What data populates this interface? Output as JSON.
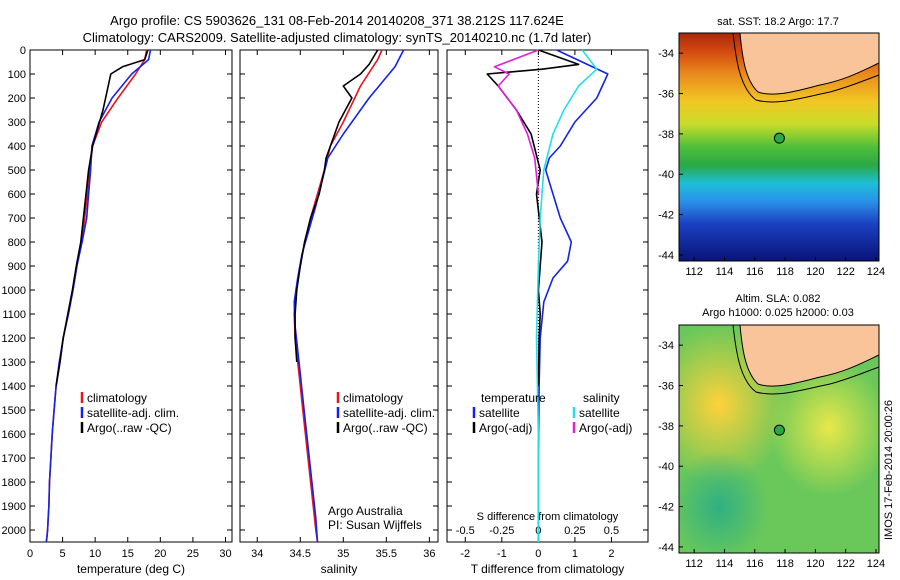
{
  "title_line1": "Argo profile: CS 5903626_131 08-Feb-2014 20140208_371 38.212S 117.624E",
  "title_line2": "Climatology: CARS2009. Satellite-adjusted climatology: synTS_20140210.nc (1.7d later)",
  "side_text": "IMOS 17-Feb-2014 20:00:26",
  "colors": {
    "climatology": "#e8141e",
    "satellite": "#1423e6",
    "argo": "#000000",
    "salinity_satellite": "#22e0e8",
    "salinity_argo": "#e020d8"
  },
  "chart_data": [
    {
      "type": "line",
      "xlabel": "temperature (deg C)",
      "ylabel": "",
      "xlim": [
        0,
        31
      ],
      "ylim": [
        2050,
        0
      ],
      "xticks": [
        0,
        5,
        10,
        15,
        20,
        25,
        30
      ],
      "yticks": [
        0,
        100,
        200,
        300,
        400,
        500,
        600,
        700,
        800,
        900,
        1000,
        1100,
        1200,
        1300,
        1400,
        1500,
        1600,
        1700,
        1800,
        1900,
        2000
      ],
      "legend": {
        "location": "center-right",
        "entries": [
          "climatology",
          "satellite-adj. clim.",
          "Argo(..raw -QC)"
        ]
      },
      "series": [
        {
          "name": "climatology",
          "color_key": "climatology",
          "x": [
            17.9,
            17.6,
            16.2,
            13.5,
            11.0,
            9.6,
            9.2,
            8.8,
            8.4,
            7.9,
            7.2,
            6.6,
            5.9,
            5.1,
            4.6,
            4.0,
            3.7,
            3.4,
            3.2,
            3.0,
            2.9,
            2.8,
            2.7,
            2.6,
            2.5
          ],
          "y": [
            0,
            40,
            100,
            200,
            300,
            400,
            500,
            600,
            700,
            800,
            900,
            1000,
            1100,
            1200,
            1300,
            1400,
            1500,
            1600,
            1700,
            1800,
            1900,
            1950,
            2000,
            2030,
            2050
          ]
        },
        {
          "name": "satellite-adj. clim.",
          "color_key": "satellite",
          "x": [
            18.5,
            18.2,
            15.6,
            12.6,
            10.6,
            9.5,
            9.3,
            9.0,
            8.7,
            8.0,
            7.2,
            6.6,
            5.9,
            5.1,
            4.5,
            4.0,
            3.7,
            3.4,
            3.2,
            3.0,
            2.9,
            2.8,
            2.7,
            2.6,
            2.5
          ],
          "y": [
            0,
            40,
            100,
            200,
            300,
            400,
            500,
            600,
            700,
            800,
            900,
            1000,
            1100,
            1200,
            1300,
            1400,
            1500,
            1600,
            1700,
            1800,
            1900,
            1950,
            2000,
            2030,
            2050
          ]
        },
        {
          "name": "Argo(..raw -QC)",
          "color_key": "argo",
          "x": [
            18.1,
            17.6,
            14.2,
            12.4,
            12.0,
            11.2,
            9.6,
            9.0,
            8.6,
            8.2,
            7.8,
            7.1,
            6.5,
            5.8,
            5.1,
            4.6,
            4.0
          ],
          "y": [
            0,
            40,
            70,
            100,
            150,
            250,
            400,
            500,
            600,
            700,
            800,
            900,
            1000,
            1100,
            1200,
            1300,
            1400
          ]
        }
      ]
    },
    {
      "type": "line",
      "xlabel": "salinity",
      "ylabel": "",
      "xlim": [
        33.8,
        36.1
      ],
      "ylim": [
        2050,
        0
      ],
      "xticks": [
        34,
        34.5,
        35,
        35.5,
        36
      ],
      "legend": {
        "location": "center-right",
        "entries": [
          "climatology",
          "satellite-adj. clim.",
          "Argo(..raw -QC)"
        ]
      },
      "annotations": [
        "Argo Australia",
        "PI: Susan Wijffels"
      ],
      "series": [
        {
          "name": "climatology",
          "color_key": "climatology",
          "x": [
            35.45,
            35.4,
            35.2,
            35.0,
            34.85,
            34.78,
            34.7,
            34.62,
            34.55,
            34.5,
            34.45,
            34.43,
            34.44,
            34.47,
            34.5,
            34.53,
            34.56,
            34.59,
            34.62,
            34.65,
            34.68,
            34.7
          ],
          "y": [
            0,
            40,
            150,
            300,
            400,
            500,
            600,
            700,
            800,
            900,
            1000,
            1100,
            1200,
            1300,
            1400,
            1500,
            1600,
            1700,
            1800,
            1900,
            2000,
            2050
          ]
        },
        {
          "name": "satellite-adj. clim.",
          "color_key": "satellite",
          "x": [
            35.7,
            35.6,
            35.3,
            35.0,
            34.82,
            34.75,
            34.68,
            34.6,
            34.52,
            34.47,
            34.43,
            34.44,
            34.47,
            34.5,
            34.53,
            34.56,
            34.59,
            34.62,
            34.65,
            34.68,
            34.7
          ],
          "y": [
            0,
            70,
            200,
            350,
            450,
            550,
            650,
            750,
            850,
            950,
            1050,
            1150,
            1250,
            1350,
            1450,
            1550,
            1650,
            1750,
            1850,
            1950,
            2050
          ]
        },
        {
          "name": "Argo(..raw -QC)",
          "color_key": "argo",
          "x": [
            35.4,
            35.3,
            35.2,
            35.0,
            35.1,
            34.95,
            34.85,
            34.8,
            34.78,
            34.72,
            34.62,
            34.55,
            34.5,
            34.46,
            34.44,
            34.44,
            34.46
          ],
          "y": [
            0,
            60,
            100,
            150,
            200,
            300,
            400,
            450,
            500,
            600,
            700,
            800,
            900,
            1000,
            1100,
            1200,
            1300
          ]
        }
      ]
    },
    {
      "type": "line",
      "xlabel": "T difference from climatology",
      "x2label": "S difference from climatology",
      "ylabel": "",
      "xlim": [
        -2.5,
        3.0
      ],
      "ylim": [
        2050,
        0
      ],
      "xticks": [
        -2,
        -1,
        0,
        1,
        2
      ],
      "x2ticks": [
        -0.5,
        -0.25,
        0,
        0.25,
        0.5
      ],
      "x2ticklabels": [
        "-0.5",
        "-0.25",
        "0",
        "0.25",
        "0.5"
      ],
      "legend": {
        "location": "center",
        "entries": [
          "temperature",
          "satellite",
          "Argo(-adj)",
          "salinity",
          "satellite",
          "Argo(-adj)"
        ]
      },
      "series": [
        {
          "name": "temperature satellite",
          "color_key": "satellite",
          "x": [
            0.5,
            1.9,
            1.6,
            1.0,
            0.6,
            0.3,
            0.2,
            0.3,
            0.6,
            0.9,
            0.8,
            0.4,
            0.15,
            0.05,
            0.02,
            0.0,
            0.0
          ],
          "y": [
            0,
            100,
            200,
            300,
            400,
            450,
            500,
            550,
            700,
            800,
            880,
            950,
            1050,
            1200,
            1400,
            1700,
            2050
          ]
        },
        {
          "name": "temperature Argo(-adj)",
          "color_key": "argo",
          "x": [
            0.0,
            1.1,
            0.1,
            -1.4,
            -1.1,
            -0.6,
            -0.2,
            0.05,
            -0.05,
            0.1,
            0.0,
            0.05,
            0.02,
            0.0
          ],
          "y": [
            0,
            60,
            80,
            100,
            150,
            250,
            350,
            500,
            600,
            800,
            1000,
            1100,
            1200,
            1400
          ]
        },
        {
          "name": "salinity satellite",
          "color_key": "salinity_satellite",
          "x": [
            1.2,
            1.6,
            1.1,
            0.7,
            0.4,
            0.15,
            0.05,
            0.0,
            -0.05,
            0.0,
            0.0
          ],
          "y": [
            0,
            80,
            150,
            250,
            350,
            500,
            700,
            900,
            1200,
            1600,
            2050
          ]
        },
        {
          "name": "salinity Argo(-adj)",
          "color_key": "salinity_argo",
          "x": [
            0.0,
            -1.2,
            -0.8,
            -1.1,
            -0.6,
            -0.3,
            -0.1,
            0.0
          ],
          "y": [
            0,
            70,
            100,
            150,
            250,
            350,
            450,
            600
          ]
        }
      ]
    }
  ],
  "maps": {
    "sst": {
      "title": "sat. SST: 18.2 Argo: 17.7",
      "lon_ticks": [
        112,
        114,
        116,
        118,
        120,
        122,
        124
      ],
      "lat_ticks": [
        -34,
        -36,
        -38,
        -40,
        -42,
        -44
      ],
      "lon_range": [
        111,
        124.2
      ],
      "lat_range": [
        -33,
        -44.3
      ],
      "argo_lon": 117.624,
      "argo_lat": -38.212
    },
    "sla": {
      "title": "Altim. SLA: 0.082",
      "subtitle": "Argo h1000: 0.025 h2000: 0.03",
      "lon_ticks": [
        112,
        114,
        116,
        118,
        120,
        122,
        124
      ],
      "lat_ticks": [
        -34,
        -36,
        -38,
        -40,
        -42,
        -44
      ],
      "lon_range": [
        111,
        124.2
      ],
      "lat_range": [
        -33,
        -44.3
      ],
      "argo_lon": 117.624,
      "argo_lat": -38.212
    }
  }
}
